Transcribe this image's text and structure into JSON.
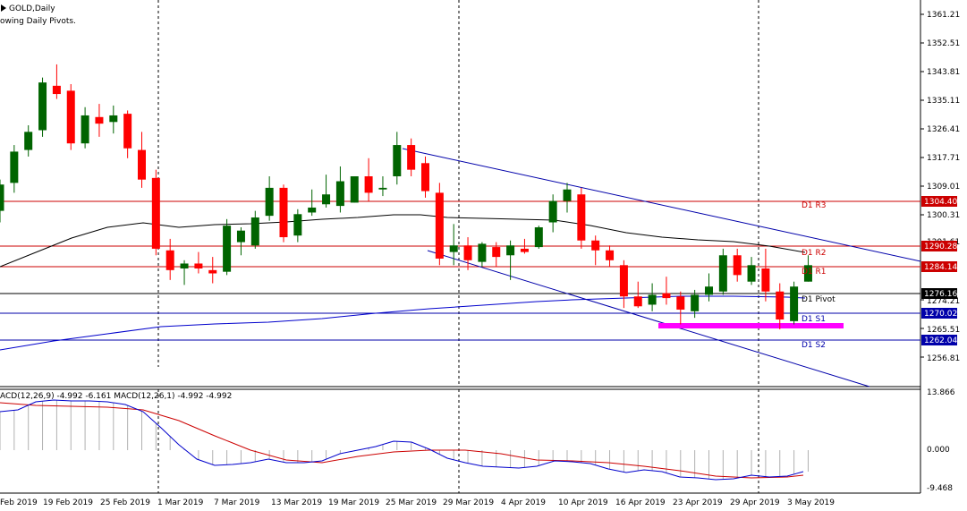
{
  "header": {
    "symbol": "GOLD,Daily",
    "indicator": "owing Daily Pivots."
  },
  "macd": {
    "label": "ACD(12,26,9) -4.992 -6.161 MACD(12,26,1) -4.992 -4.992",
    "price_labels": [
      "13.866",
      "0.000",
      "-9.468"
    ]
  },
  "price_axis": {
    "labels": [
      "1361.21",
      "1352.51",
      "1343.81",
      "1335.11",
      "1326.41",
      "1317.71",
      "1309.01",
      "1300.31",
      "1291.61",
      "1274.21",
      "1265.51",
      "1256.81"
    ]
  },
  "pivots": [
    {
      "name": "D1 R3",
      "value": "1304.40",
      "color": "#cc0000"
    },
    {
      "name": "D1 R2",
      "value": "1290.28",
      "color": "#cc0000"
    },
    {
      "name": "D1 R1",
      "value": "1284.14",
      "color": "#cc0000"
    },
    {
      "name": "D1 Pivot",
      "value": "1276.16",
      "color": "#000000"
    },
    {
      "name": "D1 S1",
      "value": "1270.02",
      "color": "#0000aa"
    },
    {
      "name": "D1 S2",
      "value": "1262.04",
      "color": "#0000aa"
    }
  ],
  "time_axis": {
    "labels": [
      "Feb 2019",
      "19 Feb 2019",
      "25 Feb 2019",
      "1 Mar 2019",
      "7 Mar 2019",
      "13 Mar 2019",
      "19 Mar 2019",
      "25 Mar 2019",
      "29 Mar 2019",
      "4 Apr 2019",
      "10 Apr 2019",
      "16 Apr 2019",
      "23 Apr 2019",
      "29 Apr 2019",
      "3 May 2019"
    ]
  },
  "colors": {
    "bull": "#006400",
    "bear": "#ff0000",
    "macd_signal": "#cc0000",
    "macd_line": "#0000cc",
    "ma": "#000000",
    "trendline": "#0000aa",
    "highlight": "#ff00ff"
  },
  "chart_data": {
    "type": "candlestick",
    "ylim": [
      1252,
      1365
    ],
    "candles": [
      {
        "o": 1301.5,
        "h": 1311.0,
        "l": 1298.0,
        "c": 1309.5
      },
      {
        "o": 1310.0,
        "h": 1321.5,
        "l": 1307.0,
        "c": 1319.5
      },
      {
        "o": 1320.0,
        "h": 1327.5,
        "l": 1318.0,
        "c": 1325.5
      },
      {
        "o": 1326.0,
        "h": 1342.0,
        "l": 1324.0,
        "c": 1340.5
      },
      {
        "o": 1339.5,
        "h": 1346.0,
        "l": 1335.5,
        "c": 1337.0
      },
      {
        "o": 1338.0,
        "h": 1340.0,
        "l": 1320.0,
        "c": 1322.0
      },
      {
        "o": 1322.0,
        "h": 1333.0,
        "l": 1320.5,
        "c": 1330.5
      },
      {
        "o": 1330.0,
        "h": 1334.0,
        "l": 1324.0,
        "c": 1328.0
      },
      {
        "o": 1328.5,
        "h": 1333.5,
        "l": 1325.0,
        "c": 1330.5
      },
      {
        "o": 1331.0,
        "h": 1332.0,
        "l": 1317.5,
        "c": 1320.5
      },
      {
        "o": 1320.0,
        "h": 1325.5,
        "l": 1308.5,
        "c": 1311.0
      },
      {
        "o": 1311.5,
        "h": 1314.0,
        "l": 1288.0,
        "c": 1290.0
      },
      {
        "o": 1289.5,
        "h": 1293.0,
        "l": 1280.5,
        "c": 1283.5
      },
      {
        "o": 1284.0,
        "h": 1286.5,
        "l": 1279.0,
        "c": 1285.5
      },
      {
        "o": 1285.5,
        "h": 1289.0,
        "l": 1282.5,
        "c": 1284.0
      },
      {
        "o": 1283.5,
        "h": 1287.5,
        "l": 1279.5,
        "c": 1282.5
      },
      {
        "o": 1283.0,
        "h": 1299.0,
        "l": 1282.0,
        "c": 1297.0
      },
      {
        "o": 1292.0,
        "h": 1296.5,
        "l": 1288.0,
        "c": 1295.5
      },
      {
        "o": 1291.0,
        "h": 1301.5,
        "l": 1290.0,
        "c": 1299.5
      },
      {
        "o": 1300.0,
        "h": 1312.0,
        "l": 1298.5,
        "c": 1308.5
      },
      {
        "o": 1308.5,
        "h": 1309.5,
        "l": 1292.0,
        "c": 1293.5
      },
      {
        "o": 1294.0,
        "h": 1302.0,
        "l": 1292.0,
        "c": 1300.5
      },
      {
        "o": 1301.0,
        "h": 1308.0,
        "l": 1300.0,
        "c": 1302.5
      },
      {
        "o": 1303.5,
        "h": 1312.5,
        "l": 1302.5,
        "c": 1306.5
      },
      {
        "o": 1303.0,
        "h": 1315.0,
        "l": 1301.0,
        "c": 1310.5
      },
      {
        "o": 1304.0,
        "h": 1311.0,
        "l": 1304.0,
        "c": 1312.0
      },
      {
        "o": 1312.0,
        "h": 1317.5,
        "l": 1304.5,
        "c": 1307.0
      },
      {
        "o": 1308.0,
        "h": 1312.0,
        "l": 1306.0,
        "c": 1308.5
      },
      {
        "o": 1312.0,
        "h": 1325.5,
        "l": 1309.5,
        "c": 1321.5
      },
      {
        "o": 1321.5,
        "h": 1323.5,
        "l": 1312.0,
        "c": 1314.0
      },
      {
        "o": 1316.0,
        "h": 1318.0,
        "l": 1305.5,
        "c": 1307.5
      },
      {
        "o": 1307.0,
        "h": 1310.0,
        "l": 1285.0,
        "c": 1287.0
      },
      {
        "o": 1289.0,
        "h": 1297.5,
        "l": 1285.0,
        "c": 1291.0
      },
      {
        "o": 1291.0,
        "h": 1293.5,
        "l": 1283.5,
        "c": 1286.5
      },
      {
        "o": 1286.0,
        "h": 1292.0,
        "l": 1284.5,
        "c": 1291.5
      },
      {
        "o": 1290.5,
        "h": 1292.0,
        "l": 1284.5,
        "c": 1287.5
      },
      {
        "o": 1288.0,
        "h": 1292.5,
        "l": 1280.5,
        "c": 1291.0
      },
      {
        "o": 1290.0,
        "h": 1293.0,
        "l": 1288.5,
        "c": 1289.0
      },
      {
        "o": 1290.5,
        "h": 1297.0,
        "l": 1290.0,
        "c": 1296.5
      },
      {
        "o": 1298.0,
        "h": 1306.5,
        "l": 1295.0,
        "c": 1304.5
      },
      {
        "o": 1304.5,
        "h": 1310.0,
        "l": 1301.0,
        "c": 1308.0
      },
      {
        "o": 1306.5,
        "h": 1308.5,
        "l": 1290.0,
        "c": 1292.5
      },
      {
        "o": 1292.5,
        "h": 1294.0,
        "l": 1285.0,
        "c": 1289.5
      },
      {
        "o": 1289.5,
        "h": 1291.0,
        "l": 1284.5,
        "c": 1286.5
      },
      {
        "o": 1285.0,
        "h": 1286.5,
        "l": 1272.0,
        "c": 1275.5
      },
      {
        "o": 1275.5,
        "h": 1280.0,
        "l": 1272.0,
        "c": 1272.5
      },
      {
        "o": 1273.0,
        "h": 1279.5,
        "l": 1271.0,
        "c": 1276.0
      },
      {
        "o": 1276.5,
        "h": 1281.5,
        "l": 1273.0,
        "c": 1275.0
      },
      {
        "o": 1275.5,
        "h": 1277.0,
        "l": 1267.0,
        "c": 1271.5
      },
      {
        "o": 1271.0,
        "h": 1277.5,
        "l": 1269.0,
        "c": 1276.0
      },
      {
        "o": 1276.0,
        "h": 1282.5,
        "l": 1274.0,
        "c": 1278.5
      },
      {
        "o": 1277.0,
        "h": 1290.0,
        "l": 1276.0,
        "c": 1288.0
      },
      {
        "o": 1288.0,
        "h": 1290.0,
        "l": 1280.0,
        "c": 1282.0
      },
      {
        "o": 1280.0,
        "h": 1287.5,
        "l": 1279.0,
        "c": 1285.0
      },
      {
        "o": 1284.0,
        "h": 1290.0,
        "l": 1274.0,
        "c": 1277.0
      },
      {
        "o": 1277.0,
        "h": 1279.5,
        "l": 1265.5,
        "c": 1268.5
      },
      {
        "o": 1268.0,
        "h": 1280.0,
        "l": 1267.0,
        "c": 1278.5
      },
      {
        "o": 1280.0,
        "h": 1288.0,
        "l": 1280.0,
        "c": 1285.0
      }
    ]
  }
}
